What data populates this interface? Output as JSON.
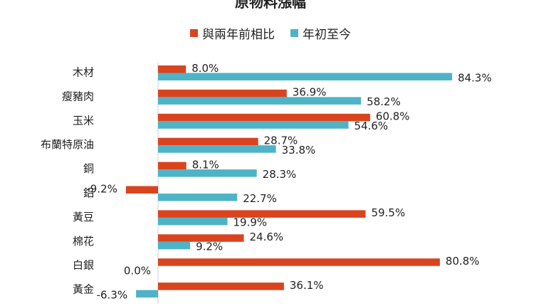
{
  "colors": {
    "series_1": "#d9441f",
    "series_2": "#4fb3c6",
    "axis": "#d0d0d0",
    "text": "#222222"
  },
  "chart_data": {
    "type": "bar",
    "orientation": "horizontal",
    "title": "原物料漲幅",
    "legend_position": "top-center",
    "grid": false,
    "categories": [
      "木材",
      "瘦豬肉",
      "玉米",
      "布蘭特原油",
      "銅",
      "鋁",
      "黃豆",
      "棉花",
      "白銀",
      "黃金"
    ],
    "series": [
      {
        "name": "與兩年前相比",
        "values": [
          8.0,
          36.9,
          60.8,
          28.7,
          8.1,
          -9.2,
          59.5,
          24.6,
          80.8,
          36.1
        ]
      },
      {
        "name": "年初至今",
        "values": [
          84.3,
          58.2,
          54.6,
          33.8,
          28.3,
          22.7,
          19.9,
          9.2,
          0.0,
          -6.3
        ]
      }
    ],
    "value_suffix": "%",
    "xlim": [
      -10,
      90
    ]
  }
}
